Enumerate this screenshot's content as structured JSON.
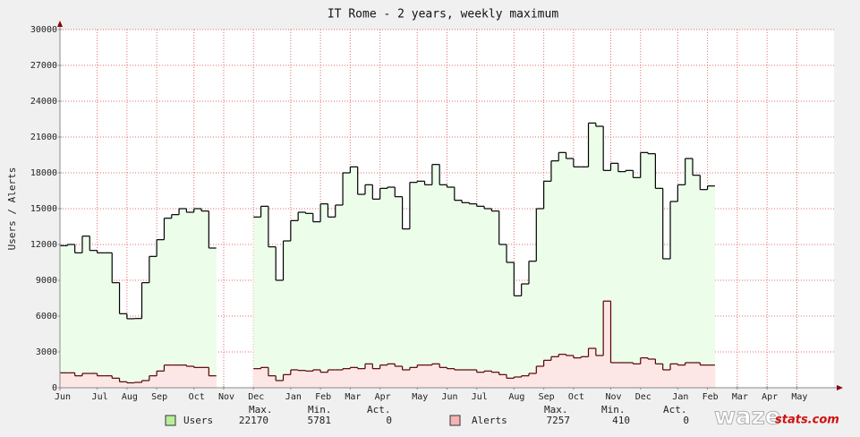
{
  "chart_data": {
    "type": "step-area",
    "title": "IT Rome - 2 years, weekly maximum",
    "y_label": "Users / Alerts",
    "categories": [
      "Jun",
      null,
      null,
      null,
      null,
      "Jul",
      null,
      null,
      null,
      "Aug",
      null,
      null,
      null,
      "Sep",
      null,
      null,
      null,
      null,
      "Oct",
      null,
      null,
      null,
      "Nov",
      null,
      null,
      null,
      "Dec",
      null,
      null,
      null,
      null,
      "Jan",
      null,
      null,
      null,
      "Feb",
      null,
      null,
      null,
      "Mar",
      null,
      null,
      null,
      "Apr",
      null,
      null,
      null,
      null,
      "May",
      null,
      null,
      null,
      "Jun",
      null,
      null,
      null,
      "Jul",
      null,
      null,
      null,
      null,
      "Aug",
      null,
      null,
      null,
      "Sep",
      null,
      null,
      null,
      "Oct",
      null,
      null,
      null,
      null,
      "Nov",
      null,
      null,
      null,
      "Dec",
      null,
      null,
      null,
      null,
      "Jan",
      null,
      null,
      null,
      "Feb",
      null,
      null,
      null,
      "Mar",
      null,
      null,
      null,
      "Apr",
      null,
      null,
      null,
      "May",
      null,
      null,
      null,
      null
    ],
    "series": [
      {
        "name": "Users",
        "color": "#000000",
        "fill": "#ecfdea",
        "legend_color": "#b8ef98",
        "values": [
          11900,
          12000,
          11300,
          12700,
          11500,
          11300,
          11300,
          8800,
          6200,
          5781,
          5800,
          8800,
          11000,
          12400,
          14200,
          14500,
          15000,
          14700,
          15000,
          14800,
          11700,
          null,
          null,
          null,
          null,
          null,
          14300,
          15200,
          11800,
          9000,
          12300,
          14000,
          14700,
          14600,
          13900,
          15400,
          14300,
          15300,
          18000,
          18500,
          16200,
          17000,
          15800,
          16700,
          16800,
          16000,
          13300,
          17200,
          17300,
          17000,
          18700,
          17000,
          16800,
          15700,
          15500,
          15400,
          15200,
          15000,
          14800,
          12000,
          10500,
          7700,
          8700,
          10600,
          15000,
          17300,
          19000,
          19700,
          19200,
          18500,
          18500,
          22170,
          21900,
          18200,
          18800,
          18100,
          18200,
          17600,
          19700,
          19600,
          16700,
          10800,
          15600,
          17000,
          19200,
          17800,
          16600,
          16900,
          null,
          null,
          null,
          null,
          null,
          null,
          null,
          null,
          null,
          null,
          null,
          null,
          null,
          null,
          null,
          null
        ],
        "stats": {
          "max": 22170,
          "min": 5781,
          "act": 0
        }
      },
      {
        "name": "Alerts",
        "color": "#5a0000",
        "fill": "#fde6e6",
        "legend_color": "#f4b4b4",
        "values": [
          1250,
          1250,
          1000,
          1200,
          1200,
          1000,
          1000,
          800,
          500,
          410,
          450,
          600,
          1000,
          1400,
          1900,
          1900,
          1900,
          1800,
          1700,
          1700,
          1000,
          null,
          null,
          null,
          null,
          null,
          1600,
          1700,
          1000,
          600,
          1100,
          1500,
          1450,
          1400,
          1500,
          1300,
          1500,
          1500,
          1600,
          1700,
          1600,
          2000,
          1600,
          1900,
          2000,
          1800,
          1500,
          1700,
          1900,
          1900,
          2000,
          1700,
          1600,
          1500,
          1500,
          1500,
          1300,
          1400,
          1300,
          1100,
          800,
          900,
          1000,
          1200,
          1800,
          2300,
          2600,
          2800,
          2700,
          2500,
          2600,
          3300,
          2700,
          7257,
          2100,
          2100,
          2100,
          2000,
          2500,
          2400,
          2000,
          1500,
          2000,
          1900,
          2100,
          2100,
          1900,
          1900,
          null,
          null,
          null,
          null,
          null,
          null,
          null,
          null,
          null,
          null,
          null,
          null,
          null,
          null,
          null,
          null
        ],
        "stats": {
          "max": 7257,
          "min": 410,
          "act": 0
        }
      }
    ],
    "stat_labels": {
      "max": "Max.",
      "min": "Min.",
      "act": "Act."
    },
    "ylim": [
      0,
      30000
    ],
    "yticks": [
      0,
      3000,
      6000,
      9000,
      12000,
      15000,
      18000,
      21000,
      24000,
      27000,
      30000
    ],
    "grid": true,
    "logo": [
      "waze",
      "stats.com"
    ]
  }
}
